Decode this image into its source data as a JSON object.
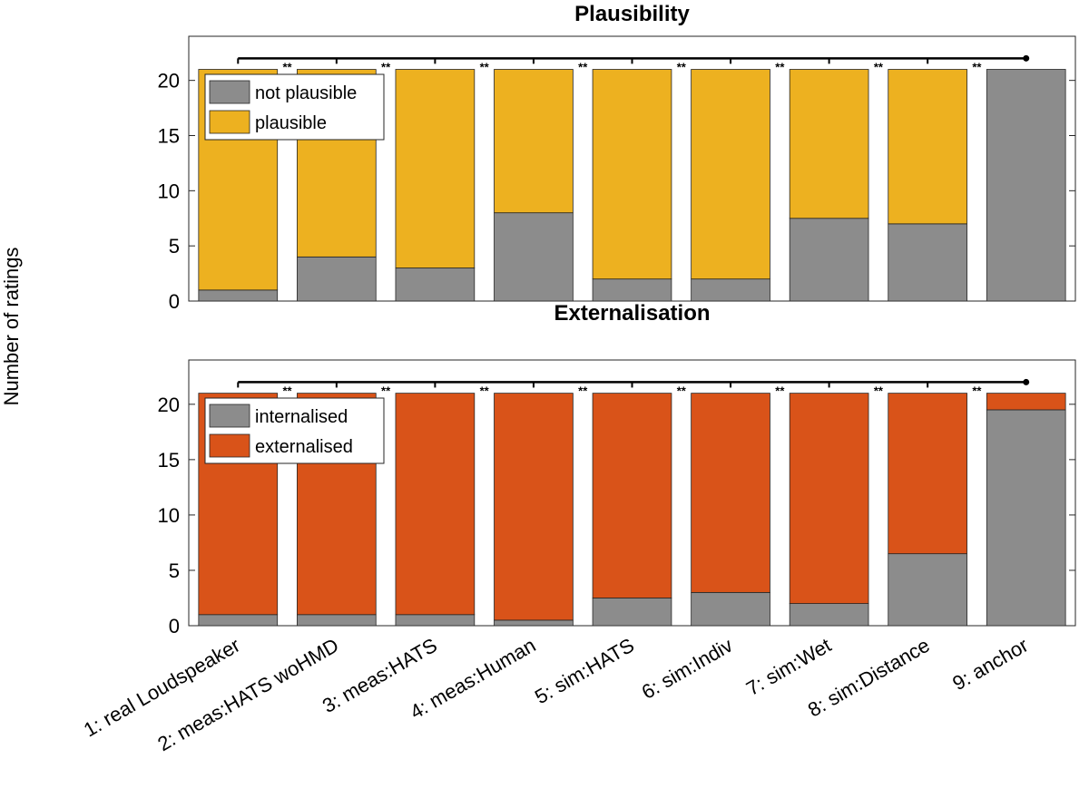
{
  "chart_data": {
    "type": "bar",
    "stacked": true,
    "ylabel": "Number of ratings",
    "categories": [
      "1: real Loudspeaker",
      "2: meas:HATS woHMD",
      "3: meas:HATS",
      "4: meas:Human",
      "5: sim:HATS",
      "6: sim:Indiv",
      "7: sim:Wet",
      "8: sim:Distance",
      "9: anchor"
    ],
    "significance_marker": "**",
    "panels": [
      {
        "title": "Plausibility",
        "ylim": [
          0,
          24
        ],
        "yticks": [
          "0",
          "5",
          "10",
          "15",
          "20"
        ],
        "legend_position": "top-left",
        "series": [
          {
            "name": "not plausible",
            "color": "#8c8c8c",
            "values": [
              1,
              4,
              3,
              8,
              2,
              2,
              7.5,
              7,
              21
            ]
          },
          {
            "name": "plausible",
            "color": "#edb120",
            "values": [
              20,
              17,
              18,
              13,
              19,
              19,
              13.5,
              14,
              0
            ]
          }
        ]
      },
      {
        "title": "Externalisation",
        "ylim": [
          0,
          24
        ],
        "yticks": [
          "0",
          "5",
          "10",
          "15",
          "20"
        ],
        "legend_position": "top-left",
        "series": [
          {
            "name": "internalised",
            "color": "#8c8c8c",
            "values": [
              1,
              1,
              1,
              0.5,
              2.5,
              3,
              2,
              6.5,
              19.5
            ]
          },
          {
            "name": "externalised",
            "color": "#d95319",
            "values": [
              20,
              20,
              20,
              20.5,
              18.5,
              18,
              19,
              14.5,
              1.5
            ]
          }
        ]
      }
    ]
  }
}
